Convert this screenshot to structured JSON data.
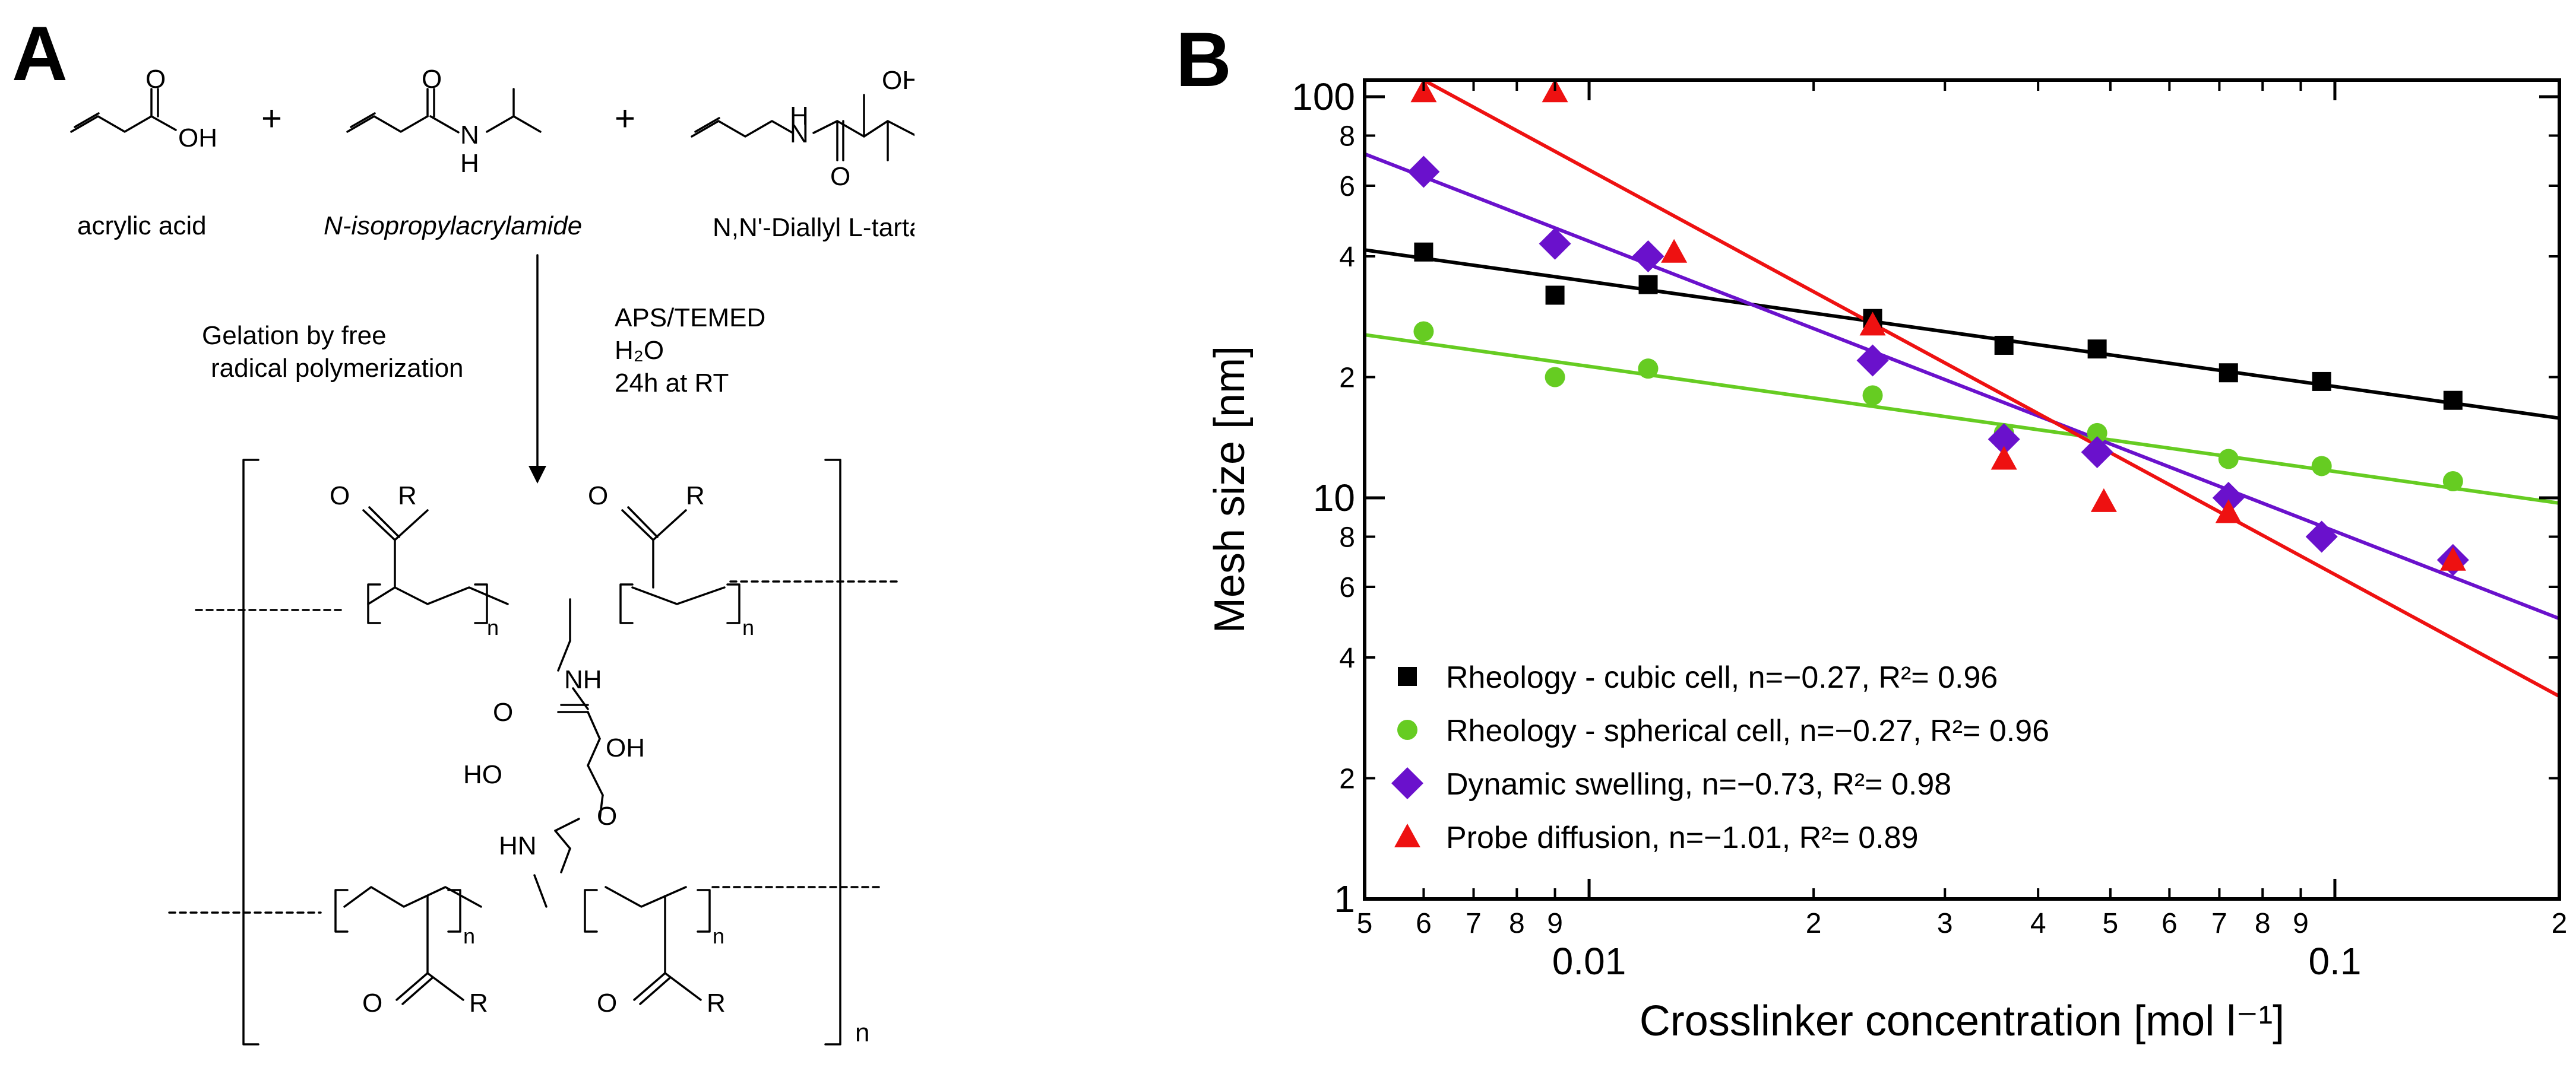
{
  "panel_a": {
    "label": "A",
    "reactants": [
      "acrylic acid",
      "N-isopropylacrylamide",
      "N,N'-Diallyl L-tartardiamide"
    ],
    "plus": "+",
    "reaction_left": [
      "Gelation by free",
      "radical polymerization"
    ],
    "reaction_right": [
      "APS/TEMED",
      "H₂O",
      "24h at RT"
    ],
    "atoms": {
      "O": "O",
      "OH": "OH",
      "H": "H",
      "N": "N",
      "R": "R",
      "NH": "NH",
      "HO": "HO",
      "HN": "HN",
      "n": "n"
    }
  },
  "panel_b": {
    "label": "B"
  },
  "chart_data": {
    "type": "scatter",
    "title": "",
    "xlabel": "Crosslinker concentration [mol l⁻¹]",
    "ylabel": "Mesh size [nm]",
    "xscale": "log",
    "yscale": "log",
    "xlim": [
      0.005,
      0.2
    ],
    "ylim": [
      1,
      110
    ],
    "x_major_ticks": [
      {
        "v": 0.01,
        "label": "0.01"
      },
      {
        "v": 0.1,
        "label": "0.1"
      }
    ],
    "x_minor_ticks": [
      {
        "v": 0.005,
        "label": "5"
      },
      {
        "v": 0.006,
        "label": "6"
      },
      {
        "v": 0.007,
        "label": "7"
      },
      {
        "v": 0.008,
        "label": "8"
      },
      {
        "v": 0.009,
        "label": "9"
      },
      {
        "v": 0.02,
        "label": "2"
      },
      {
        "v": 0.03,
        "label": "3"
      },
      {
        "v": 0.04,
        "label": "4"
      },
      {
        "v": 0.05,
        "label": "5"
      },
      {
        "v": 0.06,
        "label": "6"
      },
      {
        "v": 0.07,
        "label": "7"
      },
      {
        "v": 0.08,
        "label": "8"
      },
      {
        "v": 0.09,
        "label": "9"
      },
      {
        "v": 0.2,
        "label": "2"
      }
    ],
    "y_major_ticks": [
      {
        "v": 1,
        "label": "1"
      },
      {
        "v": 10,
        "label": "10"
      },
      {
        "v": 100,
        "label": "100"
      }
    ],
    "y_minor_ticks": [
      {
        "v": 2,
        "label": "2"
      },
      {
        "v": 4,
        "label": "4"
      },
      {
        "v": 6,
        "label": "6"
      },
      {
        "v": 8,
        "label": "8"
      },
      {
        "v": 20,
        "label": "2"
      },
      {
        "v": 40,
        "label": "4"
      },
      {
        "v": 60,
        "label": "6"
      },
      {
        "v": 80,
        "label": "8"
      }
    ],
    "legend_position": "bottom-left",
    "series": [
      {
        "name": "Rheology - cubic cell, n=−0.27, R²= 0.96",
        "marker": "square",
        "color": "#000000",
        "points": [
          [
            0.006,
            41
          ],
          [
            0.009,
            32
          ],
          [
            0.012,
            34
          ],
          [
            0.024,
            28
          ],
          [
            0.036,
            24
          ],
          [
            0.048,
            23.5
          ],
          [
            0.072,
            20.5
          ],
          [
            0.096,
            19.5
          ],
          [
            0.144,
            17.5
          ]
        ],
        "fit": [
          [
            0.005,
            41.5
          ],
          [
            0.2,
            15.8
          ]
        ]
      },
      {
        "name": "Rheology - spherical cell, n=−0.27, R²= 0.96",
        "marker": "circle",
        "color": "#66cc22",
        "points": [
          [
            0.006,
            26
          ],
          [
            0.009,
            20
          ],
          [
            0.012,
            21
          ],
          [
            0.024,
            18
          ],
          [
            0.036,
            14.5
          ],
          [
            0.048,
            14.5
          ],
          [
            0.072,
            12.5
          ],
          [
            0.096,
            12
          ],
          [
            0.144,
            11
          ]
        ],
        "fit": [
          [
            0.005,
            25.5
          ],
          [
            0.2,
            9.7
          ]
        ]
      },
      {
        "name": "Dynamic swelling, n=−0.73, R²= 0.98",
        "marker": "diamond",
        "color": "#6a11cc",
        "points": [
          [
            0.006,
            65
          ],
          [
            0.009,
            43
          ],
          [
            0.012,
            40
          ],
          [
            0.024,
            22
          ],
          [
            0.036,
            14
          ],
          [
            0.048,
            13
          ],
          [
            0.072,
            10
          ],
          [
            0.096,
            8
          ],
          [
            0.144,
            7
          ]
        ],
        "fit": [
          [
            0.005,
            72
          ],
          [
            0.2,
            5
          ]
        ]
      },
      {
        "name": "Probe diffusion, n=−1.01, R²= 0.89",
        "marker": "triangle",
        "color": "#ee1111",
        "points": [
          [
            0.006,
            103
          ],
          [
            0.009,
            103
          ],
          [
            0.013,
            41
          ],
          [
            0.024,
            27
          ],
          [
            0.036,
            12.5
          ],
          [
            0.049,
            9.8
          ],
          [
            0.072,
            9.2
          ],
          [
            0.144,
            7
          ]
        ],
        "fit": [
          [
            0.006,
            110
          ],
          [
            0.2,
            3.2
          ]
        ]
      }
    ]
  }
}
